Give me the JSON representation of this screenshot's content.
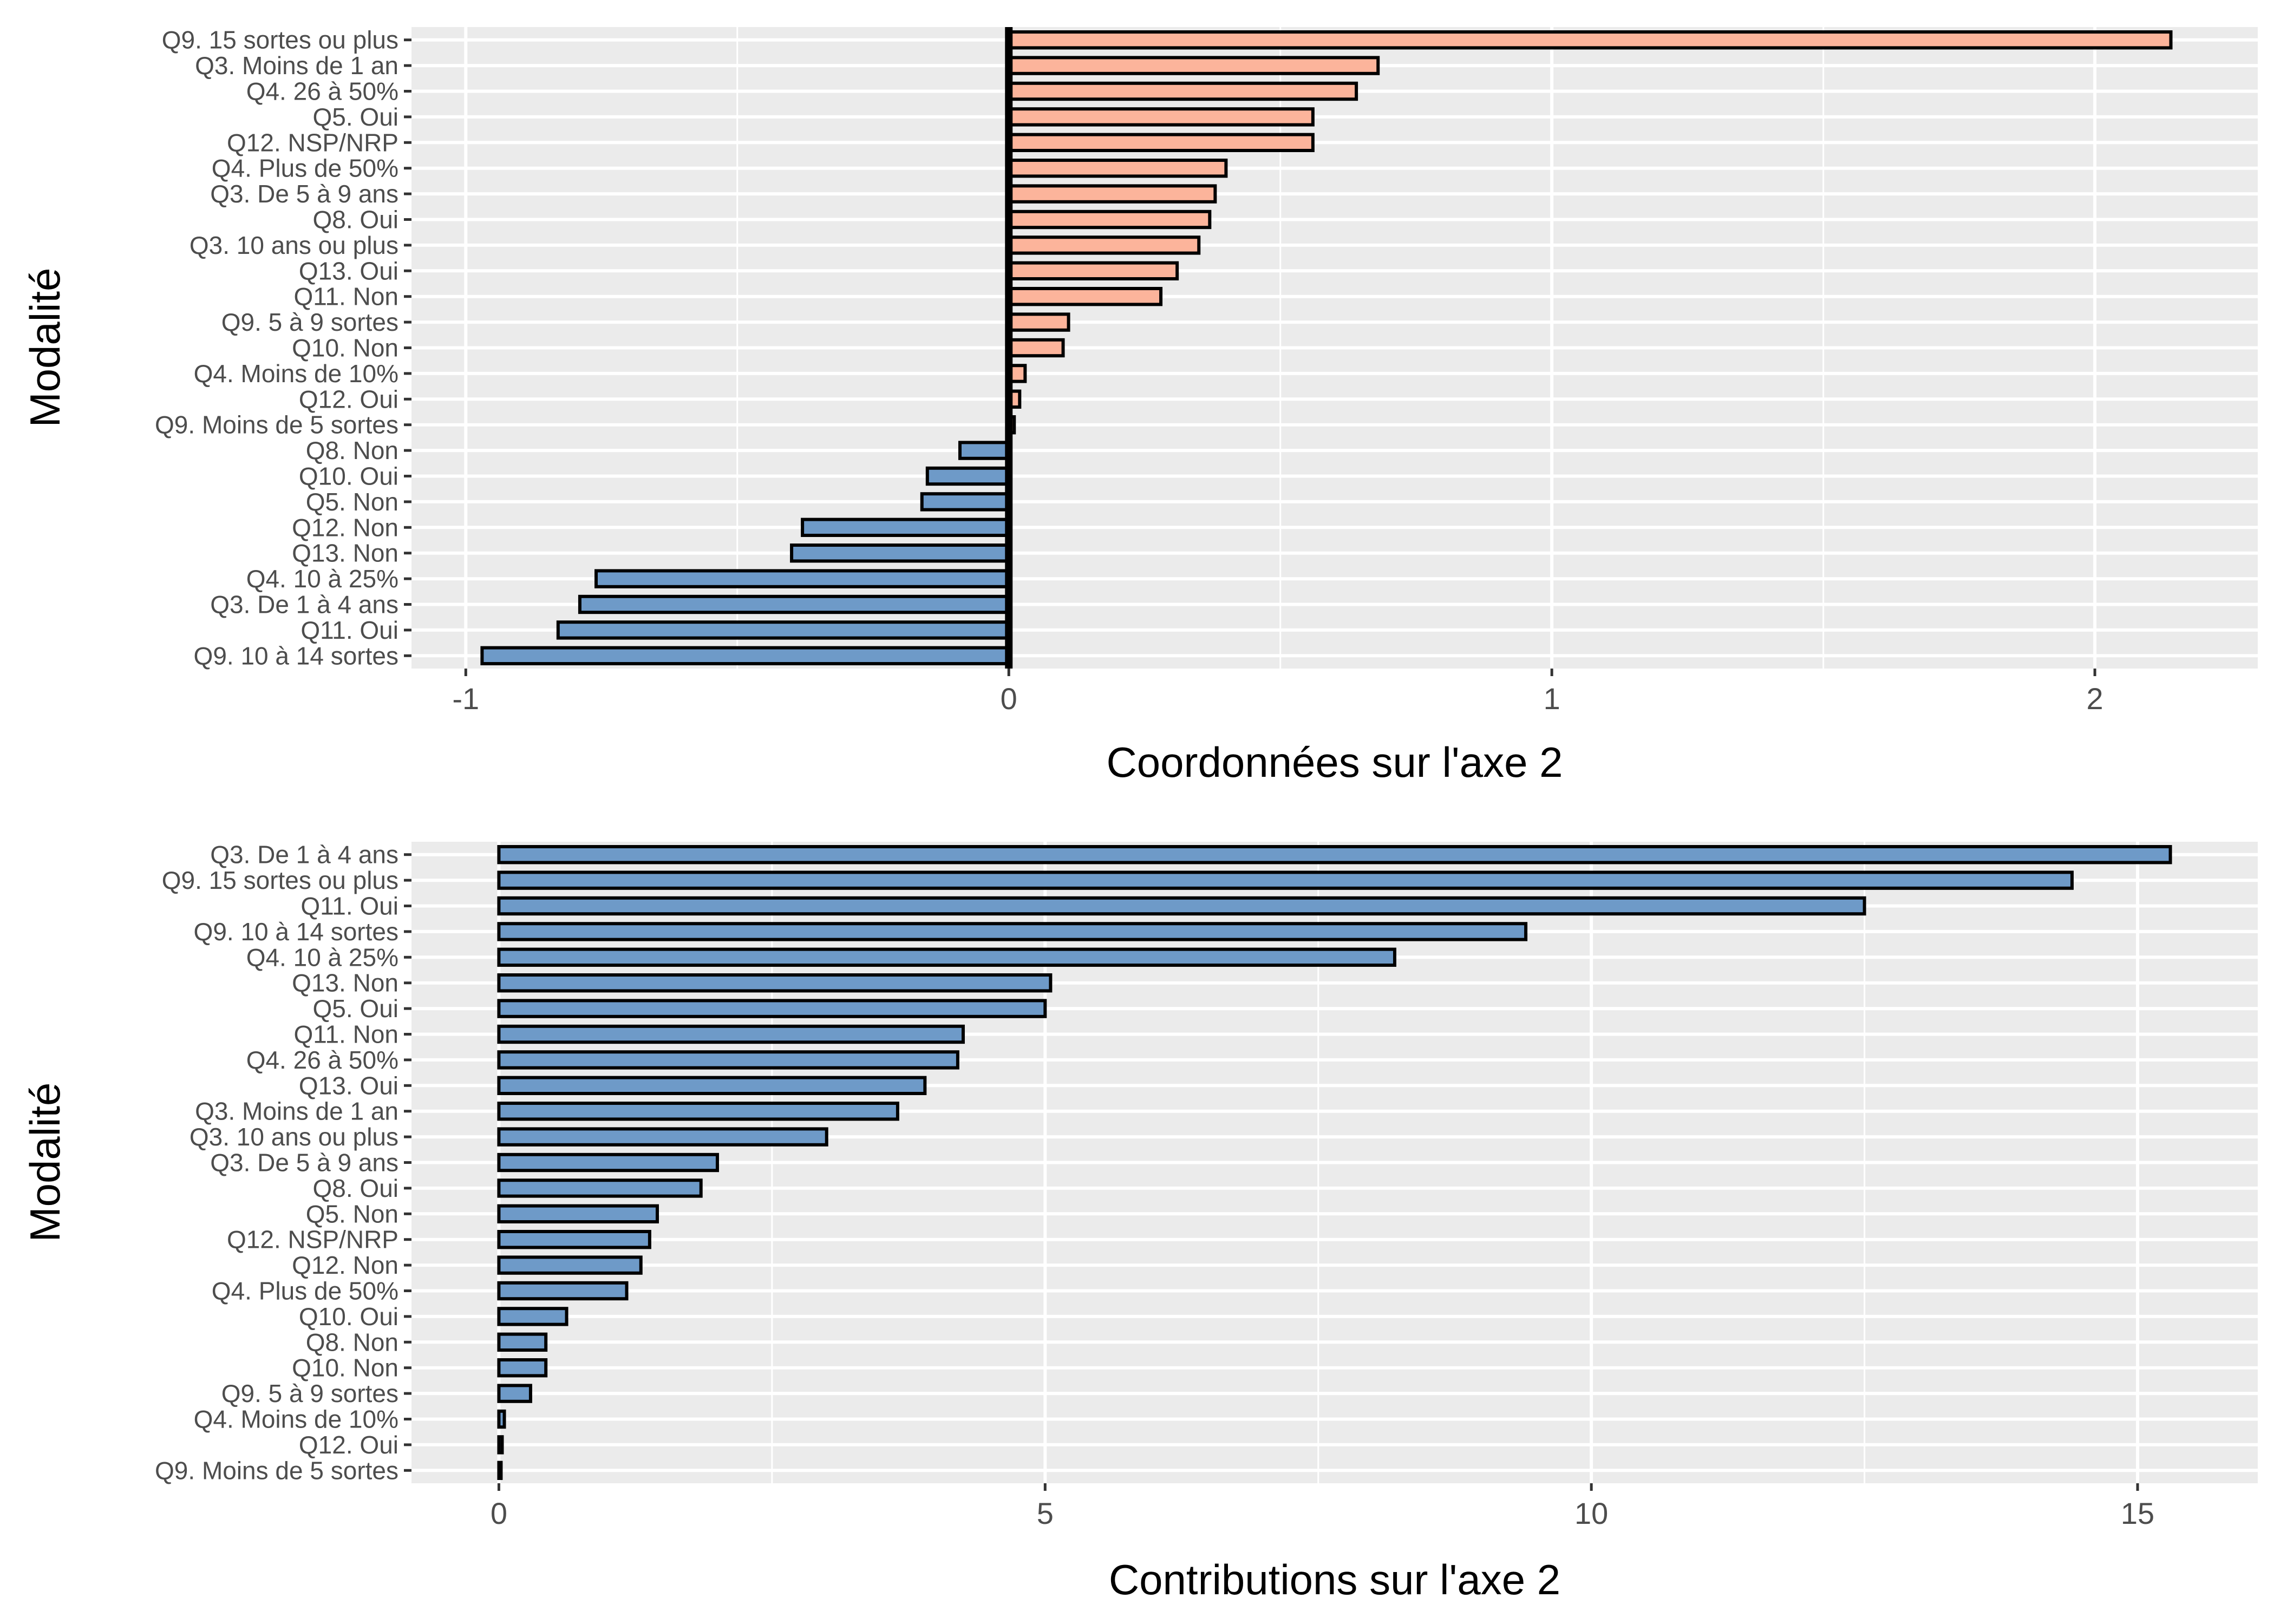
{
  "chart_data": [
    {
      "type": "bar",
      "orientation": "horizontal",
      "xlabel": "Coordonnées sur l'axe 2",
      "ylabel": "Modalité",
      "xlim": [
        -1.1,
        2.3
      ],
      "xticks": [
        -1,
        0,
        1,
        2
      ],
      "xtick_labels": [
        "-1",
        "0",
        "1",
        "2"
      ],
      "grid": true,
      "legend": "none",
      "colors": {
        "positive": "#FCB49B",
        "negative": "#6E9AC8",
        "outline": "#000000",
        "zero_line": "#000000"
      },
      "categories": [
        "Q9. 15 sortes ou plus",
        "Q3. Moins de 1 an",
        "Q4. 26 à 50%",
        "Q5. Oui",
        "Q12. NSP/NRP",
        "Q4. Plus de 50%",
        "Q3. De 5 à 9 ans",
        "Q8. Oui",
        "Q3. 10 ans ou plus",
        "Q13. Oui",
        "Q11. Non",
        "Q9. 5 à 9 sortes",
        "Q10. Non",
        "Q4. Moins de 10%",
        "Q12. Oui",
        "Q9. Moins de 5 sortes",
        "Q8. Non",
        "Q10. Oui",
        "Q5. Non",
        "Q12. Non",
        "Q13. Non",
        "Q4. 10 à 25%",
        "Q3. De 1 à 4 ans",
        "Q11. Oui",
        "Q9. 10 à 14 sortes"
      ],
      "values": [
        2.14,
        0.68,
        0.64,
        0.56,
        0.56,
        0.4,
        0.38,
        0.37,
        0.35,
        0.31,
        0.28,
        0.11,
        0.1,
        0.03,
        0.02,
        0.01,
        -0.09,
        -0.15,
        -0.16,
        -0.38,
        -0.4,
        -0.76,
        -0.79,
        -0.83,
        -0.97
      ]
    },
    {
      "type": "bar",
      "orientation": "horizontal",
      "xlabel": "Contributions sur l'axe 2",
      "ylabel": "Modalité",
      "xlim": [
        -0.8,
        16.1
      ],
      "xticks": [
        0,
        5,
        10,
        15
      ],
      "xtick_labels": [
        "0",
        "5",
        "10",
        "15"
      ],
      "grid": true,
      "legend": "none",
      "colors": {
        "bar": "#6E9AC8",
        "outline": "#000000"
      },
      "categories": [
        "Q3. De 1 à 4 ans",
        "Q9. 15 sortes ou plus",
        "Q11. Oui",
        "Q9. 10 à 14 sortes",
        "Q4. 10 à 25%",
        "Q13. Non",
        "Q5. Oui",
        "Q11. Non",
        "Q4. 26 à 50%",
        "Q13. Oui",
        "Q3. Moins de 1 an",
        "Q3. 10 ans ou plus",
        "Q3. De 5 à 9 ans",
        "Q8. Oui",
        "Q5. Non",
        "Q12. NSP/NRP",
        "Q12. Non",
        "Q4. Plus de 50%",
        "Q10. Oui",
        "Q8. Non",
        "Q10. Non",
        "Q9. 5 à 9 sortes",
        "Q4. Moins de 10%",
        "Q12. Oui",
        "Q9. Moins de 5 sortes"
      ],
      "values": [
        15.3,
        14.4,
        12.5,
        9.4,
        8.2,
        5.05,
        5.0,
        4.25,
        4.2,
        3.9,
        3.65,
        3.0,
        2.0,
        1.85,
        1.45,
        1.38,
        1.3,
        1.17,
        0.62,
        0.43,
        0.43,
        0.29,
        0.05,
        0.03,
        0.01
      ]
    }
  ]
}
